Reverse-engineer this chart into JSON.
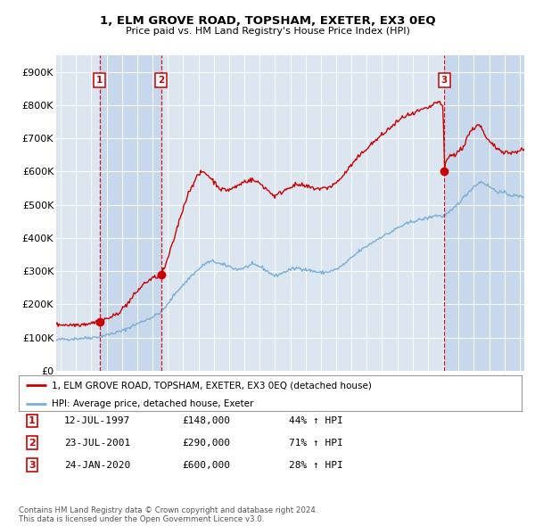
{
  "title": "1, ELM GROVE ROAD, TOPSHAM, EXETER, EX3 0EQ",
  "subtitle": "Price paid vs. HM Land Registry's House Price Index (HPI)",
  "background_color": "#ffffff",
  "plot_bg_color": "#dce6f1",
  "shaded_band_color": "#c8d8ec",
  "grid_color": "#ffffff",
  "ylim": [
    0,
    950000
  ],
  "yticks": [
    0,
    100000,
    200000,
    300000,
    400000,
    500000,
    600000,
    700000,
    800000,
    900000
  ],
  "ytick_labels": [
    "£0",
    "£100K",
    "£200K",
    "£300K",
    "£400K",
    "£500K",
    "£600K",
    "£700K",
    "£800K",
    "£900K"
  ],
  "xlim_start": 1994.7,
  "xlim_end": 2025.3,
  "xticks": [
    1995,
    1996,
    1997,
    1998,
    1999,
    2000,
    2001,
    2002,
    2003,
    2004,
    2005,
    2006,
    2007,
    2008,
    2009,
    2010,
    2011,
    2012,
    2013,
    2014,
    2015,
    2016,
    2017,
    2018,
    2019,
    2020,
    2021,
    2022,
    2023,
    2024,
    2025
  ],
  "sale_color": "#cc0000",
  "hpi_color": "#7aaed6",
  "dashed_line_color": "#cc0000",
  "dot_color": "#cc0000",
  "sale_events": [
    {
      "num": 1,
      "year": 1997.54,
      "price": 148000,
      "label": "1"
    },
    {
      "num": 2,
      "year": 2001.56,
      "price": 290000,
      "label": "2"
    },
    {
      "num": 3,
      "year": 2020.07,
      "price": 600000,
      "label": "3"
    }
  ],
  "legend_line1": "1, ELM GROVE ROAD, TOPSHAM, EXETER, EX3 0EQ (detached house)",
  "legend_line2": "HPI: Average price, detached house, Exeter",
  "table_entries": [
    {
      "num": "1",
      "date": "12-JUL-1997",
      "price": "£148,000",
      "hpi": "44% ↑ HPI"
    },
    {
      "num": "2",
      "date": "23-JUL-2001",
      "price": "£290,000",
      "hpi": "71% ↑ HPI"
    },
    {
      "num": "3",
      "date": "24-JAN-2020",
      "price": "£600,000",
      "hpi": "28% ↑ HPI"
    }
  ],
  "footer": "Contains HM Land Registry data © Crown copyright and database right 2024.\nThis data is licensed under the Open Government Licence v3.0."
}
